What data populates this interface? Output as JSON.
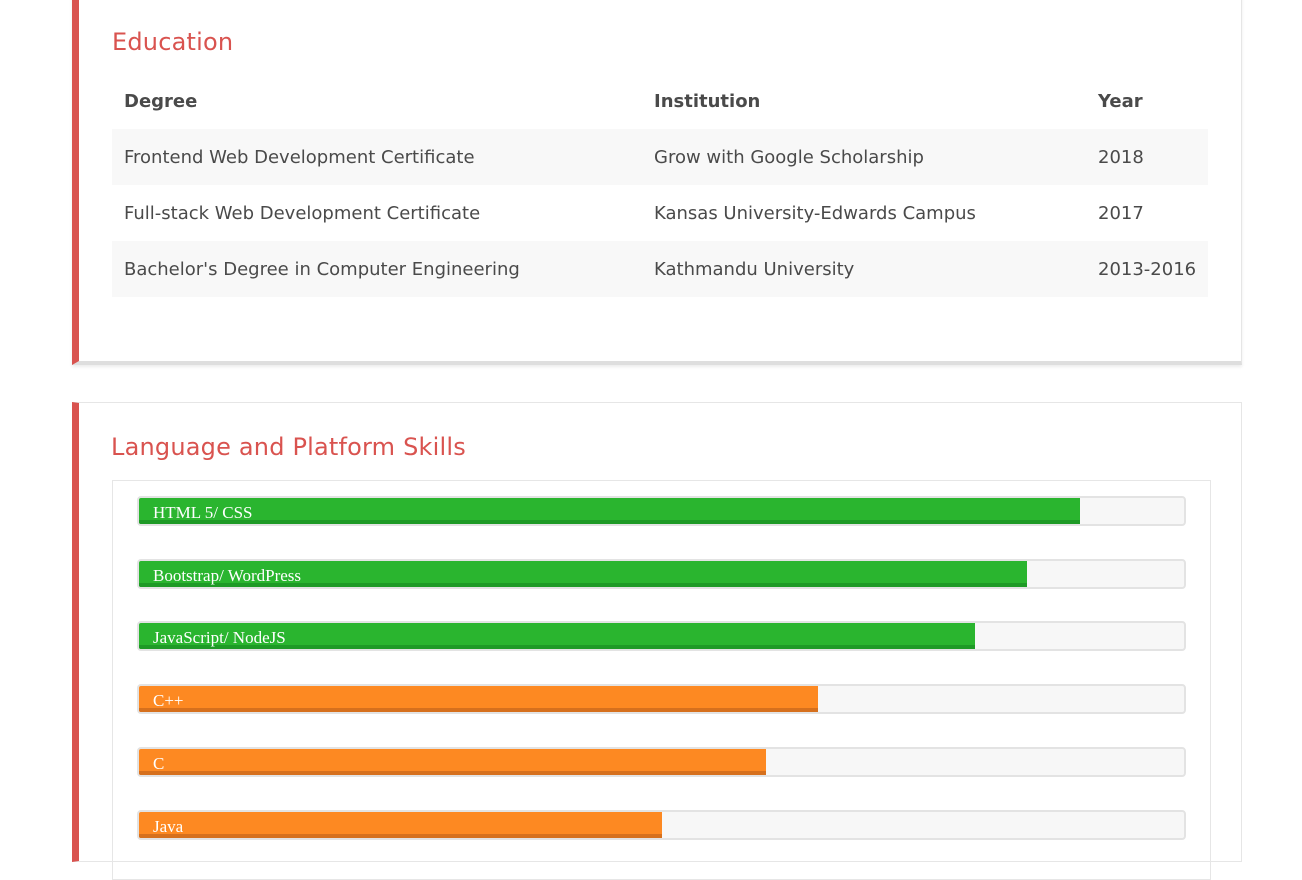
{
  "education": {
    "title": "Education",
    "headers": {
      "degree": "Degree",
      "institution": "Institution",
      "year": "Year"
    },
    "rows": [
      {
        "degree": "Frontend Web Development Certificate",
        "institution": "Grow with Google Scholarship",
        "year": "2018"
      },
      {
        "degree": "Full-stack Web Development Certificate",
        "institution": "Kansas University-Edwards Campus",
        "year": "2017"
      },
      {
        "degree": "Bachelor's Degree in Computer Engineering",
        "institution": "Kathmandu University",
        "year": "2013-2016"
      }
    ]
  },
  "skills": {
    "title": "Language and Platform Skills",
    "items": [
      {
        "label": "HTML 5/ CSS",
        "percent": 90,
        "color": "#2ab52f"
      },
      {
        "label": "Bootstrap/ WordPress",
        "percent": 85,
        "color": "#2ab52f"
      },
      {
        "label": "JavaScript/ NodeJS",
        "percent": 80,
        "color": "#2ab52f"
      },
      {
        "label": "C++",
        "percent": 65,
        "color": "#fd8922"
      },
      {
        "label": "C",
        "percent": 60,
        "color": "#fd8922"
      },
      {
        "label": "Java",
        "percent": 50,
        "color": "#fd8922"
      }
    ]
  },
  "theme": {
    "accent": "#d9534f",
    "green": "#2ab52f",
    "orange": "#fd8922"
  }
}
